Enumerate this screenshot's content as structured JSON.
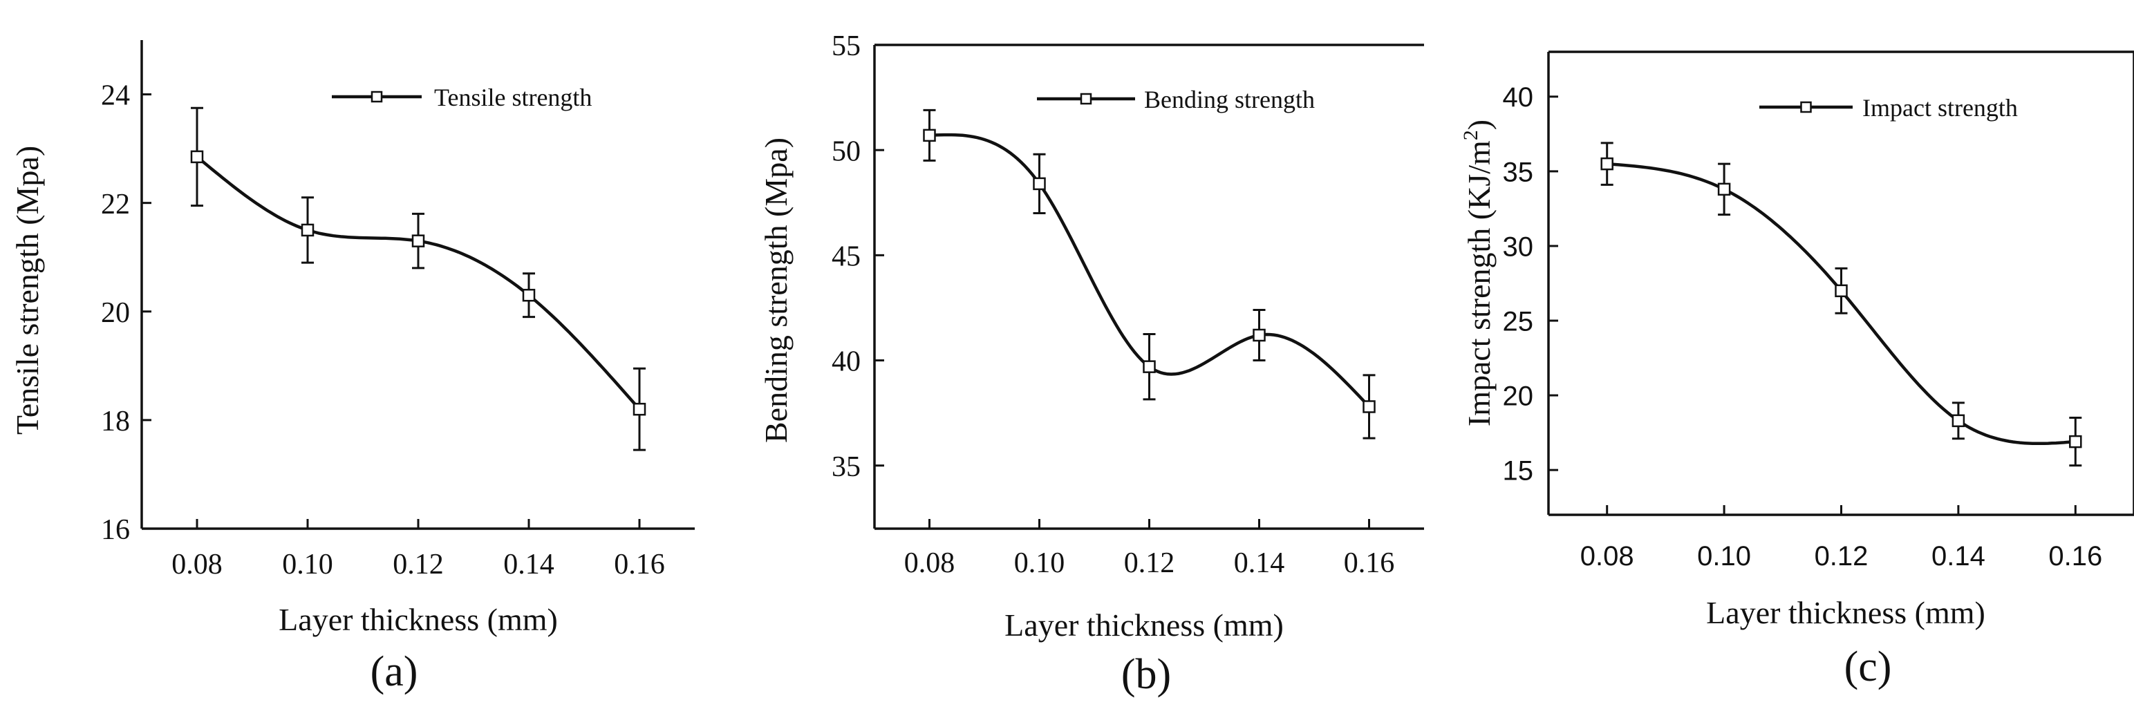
{
  "chart_data": [
    {
      "type": "line",
      "panel_label": "(a)",
      "xlabel": "Layer thickness (mm)",
      "ylabel": "Tensile strength (Mpa)",
      "xlim": [
        0.07,
        0.17
      ],
      "ylim": [
        16,
        25
      ],
      "xticks": [
        0.08,
        0.1,
        0.12,
        0.14,
        0.16
      ],
      "xtick_labels": [
        "0.08",
        "0.10",
        "0.12",
        "0.14",
        "0.16"
      ],
      "yticks": [
        16,
        18,
        20,
        22,
        24
      ],
      "ytick_labels": [
        "16",
        "18",
        "20",
        "22",
        "24"
      ],
      "series": [
        {
          "name": "Tensile strength",
          "x": [
            0.08,
            0.1,
            0.12,
            0.14,
            0.16
          ],
          "values": [
            22.85,
            21.5,
            21.3,
            20.3,
            18.2
          ],
          "errors": [
            0.9,
            0.6,
            0.5,
            0.4,
            0.75
          ]
        }
      ],
      "legend": "top-right"
    },
    {
      "type": "line",
      "panel_label": "(b)",
      "xlabel": "Layer thickness (mm)",
      "ylabel": "Bending strength (Mpa)",
      "xlim": [
        0.07,
        0.17
      ],
      "ylim": [
        32,
        55
      ],
      "xticks": [
        0.08,
        0.1,
        0.12,
        0.14,
        0.16
      ],
      "xtick_labels": [
        "0.08",
        "0.10",
        "0.12",
        "0.14",
        "0.16"
      ],
      "yticks": [
        35,
        40,
        45,
        50,
        55
      ],
      "ytick_labels": [
        "35",
        "40",
        "45",
        "50",
        "55"
      ],
      "series": [
        {
          "name": "Bending strength",
          "x": [
            0.08,
            0.1,
            0.12,
            0.14,
            0.16
          ],
          "values": [
            50.7,
            48.4,
            39.7,
            41.2,
            37.8
          ],
          "errors": [
            1.2,
            1.4,
            1.55,
            1.2,
            1.5
          ]
        }
      ],
      "legend": "top-right"
    },
    {
      "type": "line",
      "panel_label": "(c)",
      "xlabel": "Layer thickness (mm)",
      "ylabel": "Impact strength (KJ/m",
      "ylabel_sup": "2",
      "ylabel_end": ")",
      "xlim": [
        0.07,
        0.17
      ],
      "ylim": [
        12,
        43
      ],
      "xticks": [
        0.08,
        0.1,
        0.12,
        0.14,
        0.16
      ],
      "xtick_labels": [
        "0.08",
        "0.10",
        "0.12",
        "0.14",
        "0.16"
      ],
      "yticks": [
        15,
        20,
        25,
        30,
        35,
        40
      ],
      "ytick_labels": [
        "15",
        "20",
        "25",
        "30",
        "35",
        "40"
      ],
      "series": [
        {
          "name": "Impact strength",
          "x": [
            0.08,
            0.1,
            0.12,
            0.14,
            0.16
          ],
          "values": [
            35.5,
            33.8,
            27.0,
            18.3,
            16.9
          ],
          "errors": [
            1.4,
            1.7,
            1.5,
            1.2,
            1.6
          ]
        }
      ],
      "legend": "top-right"
    }
  ]
}
